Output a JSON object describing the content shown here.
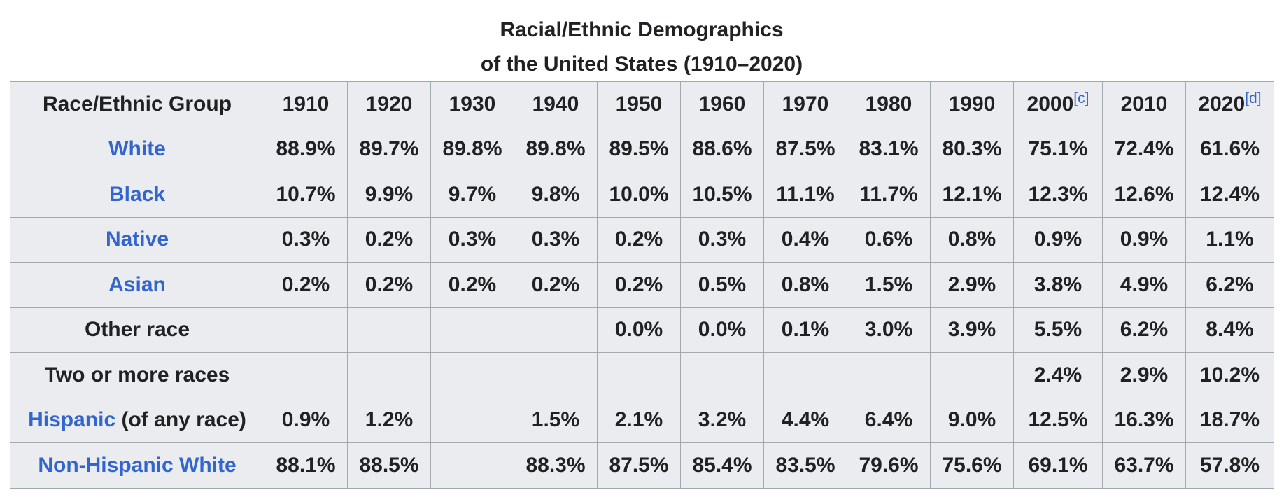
{
  "caption": {
    "line1": "Racial/Ethnic Demographics",
    "line2": "of the United States (1910–2020)"
  },
  "header": {
    "group_label": "Race/Ethnic Group",
    "years": [
      {
        "label": "1910",
        "note": ""
      },
      {
        "label": "1920",
        "note": ""
      },
      {
        "label": "1930",
        "note": ""
      },
      {
        "label": "1940",
        "note": ""
      },
      {
        "label": "1950",
        "note": ""
      },
      {
        "label": "1960",
        "note": ""
      },
      {
        "label": "1970",
        "note": ""
      },
      {
        "label": "1980",
        "note": ""
      },
      {
        "label": "1990",
        "note": ""
      },
      {
        "label": "2000",
        "note": "[c]"
      },
      {
        "label": "2010",
        "note": ""
      },
      {
        "label": "2020",
        "note": "[d]"
      }
    ]
  },
  "rows": [
    {
      "group": "White",
      "group_suffix": "",
      "is_link": true,
      "values": [
        "88.9%",
        "89.7%",
        "89.8%",
        "89.8%",
        "89.5%",
        "88.6%",
        "87.5%",
        "83.1%",
        "80.3%",
        "75.1%",
        "72.4%",
        "61.6%"
      ]
    },
    {
      "group": "Black",
      "group_suffix": "",
      "is_link": true,
      "values": [
        "10.7%",
        "9.9%",
        "9.7%",
        "9.8%",
        "10.0%",
        "10.5%",
        "11.1%",
        "11.7%",
        "12.1%",
        "12.3%",
        "12.6%",
        "12.4%"
      ]
    },
    {
      "group": "Native",
      "group_suffix": "",
      "is_link": true,
      "values": [
        "0.3%",
        "0.2%",
        "0.3%",
        "0.3%",
        "0.2%",
        "0.3%",
        "0.4%",
        "0.6%",
        "0.8%",
        "0.9%",
        "0.9%",
        "1.1%"
      ]
    },
    {
      "group": "Asian",
      "group_suffix": "",
      "is_link": true,
      "values": [
        "0.2%",
        "0.2%",
        "0.2%",
        "0.2%",
        "0.2%",
        "0.5%",
        "0.8%",
        "1.5%",
        "2.9%",
        "3.8%",
        "4.9%",
        "6.2%"
      ]
    },
    {
      "group": "Other race",
      "group_suffix": "",
      "is_link": false,
      "values": [
        "",
        "",
        "",
        "",
        "0.0%",
        "0.0%",
        "0.1%",
        "3.0%",
        "3.9%",
        "5.5%",
        "6.2%",
        "8.4%"
      ]
    },
    {
      "group": "Two or more races",
      "group_suffix": "",
      "is_link": false,
      "values": [
        "",
        "",
        "",
        "",
        "",
        "",
        "",
        "",
        "",
        "2.4%",
        "2.9%",
        "10.2%"
      ]
    },
    {
      "group": "Hispanic",
      "group_suffix": " (of any race)",
      "is_link": true,
      "values": [
        "0.9%",
        "1.2%",
        "",
        "1.5%",
        "2.1%",
        "3.2%",
        "4.4%",
        "6.4%",
        "9.0%",
        "12.5%",
        "16.3%",
        "18.7%"
      ]
    },
    {
      "group": "Non-Hispanic White",
      "group_suffix": "",
      "is_link": true,
      "values": [
        "88.1%",
        "88.5%",
        "",
        "88.3%",
        "87.5%",
        "85.4%",
        "83.5%",
        "79.6%",
        "75.6%",
        "69.1%",
        "63.7%",
        "57.8%"
      ]
    }
  ],
  "colors": {
    "link": "#3366cc",
    "cell_bg": "#eaecf0",
    "border": "#a2a9b1",
    "text": "#202122"
  }
}
